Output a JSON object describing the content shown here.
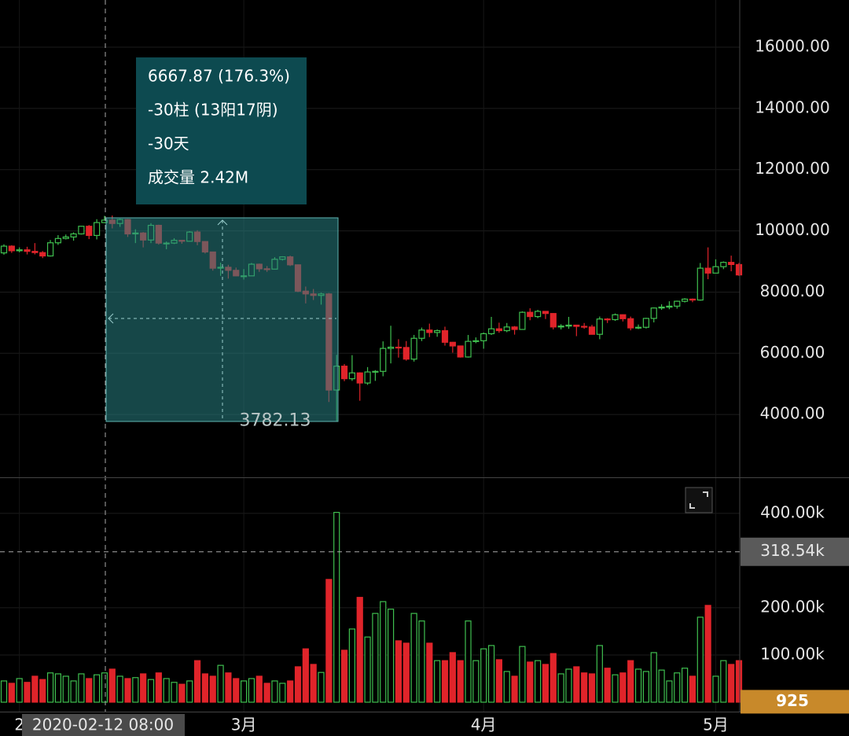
{
  "chart_data": [
    {
      "type": "candlestick",
      "categories": [
        null,
        null,
        "2",
        null,
        null,
        null,
        null,
        null,
        null,
        null,
        null,
        null,
        null,
        null,
        null,
        null,
        null,
        null,
        null,
        null,
        null,
        null,
        null,
        null,
        null,
        null,
        null,
        null,
        null,
        null,
        null,
        "3月",
        null,
        null,
        null,
        null,
        null,
        null,
        null,
        null,
        null,
        null,
        null,
        null,
        null,
        null,
        null,
        null,
        null,
        null,
        null,
        null,
        null,
        null,
        null,
        null,
        null,
        null,
        null,
        null,
        null,
        null,
        "4月",
        null,
        null,
        null,
        null,
        null,
        null,
        null,
        null,
        null,
        null,
        null,
        null,
        null,
        null,
        null,
        null,
        null,
        null,
        null,
        null,
        null,
        null,
        null,
        null,
        null,
        null,
        null,
        null,
        null,
        "5月",
        null,
        null,
        null
      ],
      "open": [
        9280,
        9500,
        9350,
        9380,
        9330,
        9290,
        9180,
        9610,
        9750,
        9800,
        9900,
        10150,
        9850,
        10270,
        10350,
        10240,
        10370,
        9900,
        9930,
        9700,
        10180,
        9600,
        9600,
        9690,
        9660,
        9960,
        9650,
        9310,
        8780,
        8810,
        8710,
        8530,
        8530,
        8910,
        8760,
        8750,
        9070,
        9150,
        8890,
        8030,
        7940,
        7890,
        7940,
        4800,
        5580,
        5170,
        5360,
        5030,
        5390,
        5410,
        6160,
        6200,
        6190,
        5810,
        6490,
        6760,
        6680,
        6740,
        6360,
        6240,
        5880,
        6390,
        6410,
        6640,
        6800,
        6740,
        6860,
        6780,
        7340,
        7200,
        7370,
        7300,
        6860,
        6890,
        6920,
        6880,
        6860,
        6620,
        7120,
        7100,
        7260,
        7130,
        6830,
        6850,
        7140,
        7480,
        7510,
        7540,
        7700,
        7770,
        7740,
        8780,
        8620,
        8830,
        8970,
        8900
      ],
      "high": [
        9560,
        9530,
        9460,
        9480,
        9600,
        9340,
        9700,
        9860,
        9880,
        9950,
        10160,
        10190,
        10380,
        10490,
        10500,
        10400,
        10390,
        10050,
        9960,
        10250,
        10200,
        9650,
        9760,
        9700,
        9990,
        10020,
        9660,
        9320,
        8960,
        8890,
        8800,
        8750,
        8950,
        8930,
        8850,
        9140,
        9170,
        9190,
        8900,
        8180,
        8100,
        7980,
        7970,
        5950,
        5650,
        5940,
        5380,
        5550,
        5450,
        6390,
        6900,
        6460,
        6400,
        6600,
        6840,
        6970,
        6780,
        6870,
        6370,
        6250,
        6600,
        6520,
        6680,
        7190,
        7000,
        6990,
        6890,
        7370,
        7470,
        7420,
        7380,
        7310,
        6950,
        7190,
        6930,
        6990,
        6930,
        7200,
        7150,
        7300,
        7270,
        7200,
        6940,
        7160,
        7500,
        7600,
        7700,
        7720,
        7800,
        7790,
        8950,
        9460,
        9070,
        9000,
        9190,
        8950
      ],
      "low": [
        9220,
        9280,
        9300,
        9230,
        9230,
        9110,
        9160,
        9540,
        9720,
        9680,
        9880,
        9730,
        9720,
        10250,
        10080,
        10130,
        9800,
        9600,
        9460,
        9600,
        9550,
        9400,
        9570,
        9580,
        9650,
        9530,
        9260,
        8700,
        8530,
        8440,
        8520,
        8410,
        8530,
        8660,
        8660,
        8740,
        9030,
        8850,
        8000,
        7630,
        7740,
        7590,
        4410,
        3782.13,
        5090,
        5100,
        4450,
        4970,
        5100,
        5250,
        5670,
        5860,
        5760,
        5730,
        6400,
        6530,
        6540,
        6250,
        6020,
        5860,
        5860,
        6330,
        6150,
        6600,
        6670,
        6690,
        6610,
        6770,
        7080,
        7150,
        7120,
        6780,
        6780,
        6800,
        6560,
        6800,
        6620,
        6460,
        6990,
        7060,
        7040,
        6750,
        6790,
        6810,
        7010,
        7420,
        7440,
        7460,
        7660,
        7670,
        7720,
        8420,
        8620,
        8750,
        8680,
        8530
      ],
      "close": [
        9500,
        9350,
        9380,
        9330,
        9290,
        9180,
        9610,
        9750,
        9800,
        9900,
        10150,
        9850,
        10270,
        10350,
        10240,
        10370,
        9900,
        9930,
        9700,
        10180,
        9600,
        9600,
        9690,
        9660,
        9960,
        9650,
        9310,
        8780,
        8810,
        8710,
        8530,
        8530,
        8910,
        8760,
        8750,
        9070,
        9150,
        8890,
        8030,
        7940,
        7890,
        7940,
        4800,
        5580,
        5170,
        5360,
        5030,
        5390,
        5410,
        6160,
        6200,
        6190,
        5810,
        6490,
        6760,
        6680,
        6740,
        6360,
        6240,
        5880,
        6390,
        6410,
        6640,
        6800,
        6740,
        6860,
        6780,
        7340,
        7200,
        7370,
        7300,
        6860,
        6890,
        6920,
        6880,
        6860,
        6620,
        7120,
        7100,
        7260,
        7130,
        6830,
        6850,
        7140,
        7480,
        7510,
        7540,
        7700,
        7770,
        7740,
        8780,
        8620,
        8830,
        8970,
        8900,
        8560
      ],
      "ylim": [
        1950,
        17540
      ],
      "yticks": [
        {
          "value": 4000,
          "label": "4000.00"
        },
        {
          "value": 6000,
          "label": "6000.00"
        },
        {
          "value": 8000,
          "label": "8000.00"
        },
        {
          "value": 10000,
          "label": "10000.00"
        },
        {
          "value": 12000,
          "label": "12000.00"
        },
        {
          "value": 14000,
          "label": "14000.00"
        },
        {
          "value": 16000,
          "label": "16000.00"
        }
      ],
      "up_color": "#3fbf4f",
      "down_color": "#e0242a",
      "grid": true
    },
    {
      "type": "bar",
      "values": [
        45000,
        40000,
        50000,
        42000,
        55000,
        48000,
        62000,
        60000,
        55000,
        45000,
        60000,
        50000,
        58000,
        62000,
        70000,
        55000,
        50000,
        52000,
        60000,
        48000,
        62000,
        50000,
        42000,
        38000,
        45000,
        88000,
        60000,
        55000,
        78000,
        62000,
        50000,
        45000,
        50000,
        55000,
        40000,
        45000,
        40000,
        45000,
        75000,
        113000,
        80000,
        63000,
        260000,
        402000,
        110000,
        155000,
        222000,
        138000,
        188000,
        213000,
        197000,
        130000,
        125000,
        188000,
        172000,
        125000,
        88000,
        88000,
        105000,
        88000,
        172000,
        88000,
        113000,
        120000,
        90000,
        65000,
        55000,
        118000,
        85000,
        88000,
        80000,
        103000,
        60000,
        70000,
        75000,
        62000,
        60000,
        120000,
        72000,
        58000,
        62000,
        88000,
        70000,
        65000,
        105000,
        68000,
        45000,
        62000,
        72000,
        55000,
        180000,
        205000,
        55000,
        88000,
        80000,
        88000
      ],
      "ylim": [
        -20000,
        468000
      ],
      "yticks": [
        {
          "value": 100000,
          "label": "100.00k"
        },
        {
          "value": 200000,
          "label": "200.00k"
        },
        {
          "value": 400000,
          "label": "400.00k"
        }
      ],
      "crosshair": {
        "value": 318540,
        "label": "318.54k"
      },
      "current": 925,
      "current_color": "#c8892a",
      "grid": true
    }
  ],
  "tooltip": {
    "lines": [
      "6667.87 (176.3%)",
      "-30柱 (13阳17阴)",
      "-30天",
      "成交量 2.42M"
    ]
  },
  "crosshair_label": "2020-02-12 08:00"
}
